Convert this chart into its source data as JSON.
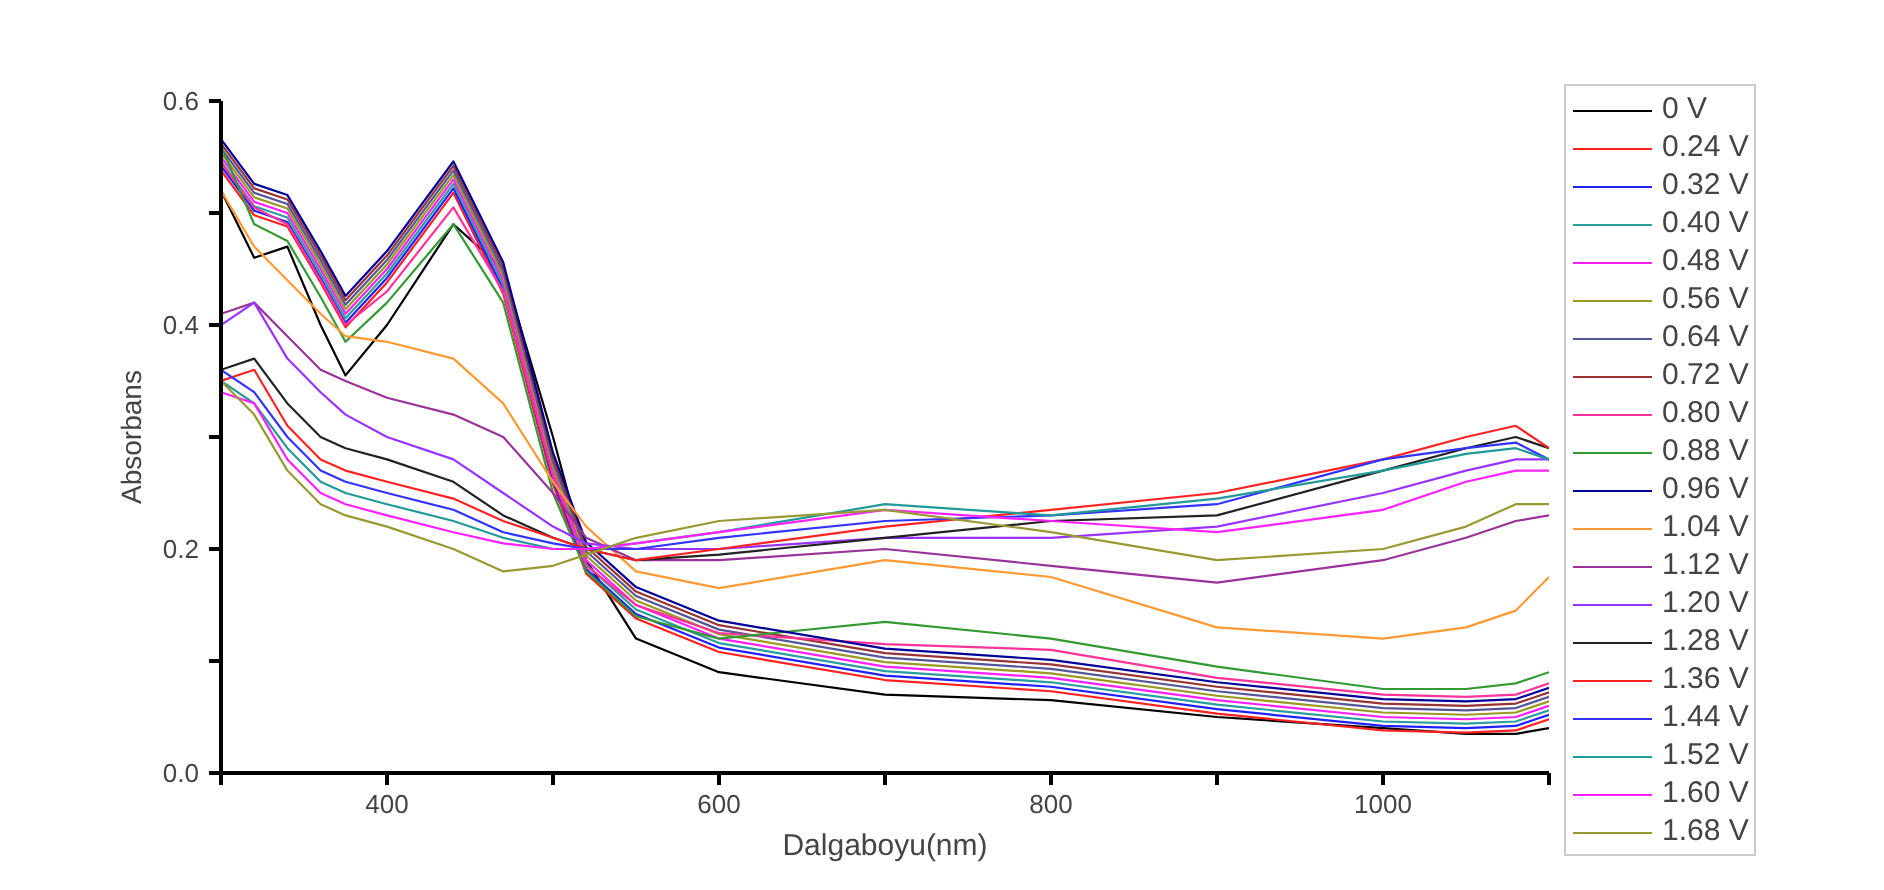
{
  "chart_data": {
    "type": "line",
    "xlabel": "Dalgaboyu(nm)",
    "ylabel": "Absorbans",
    "x": [
      300,
      320,
      340,
      360,
      375,
      400,
      440,
      470,
      500,
      520,
      550,
      600,
      700,
      800,
      900,
      1000,
      1050,
      1080,
      1100
    ],
    "xlim": [
      300,
      1100
    ],
    "ylim": [
      0,
      0.6
    ],
    "xticks": [
      {
        "value": 300,
        "label": null
      },
      400,
      {
        "value": 500,
        "label": null
      },
      600,
      {
        "value": 700,
        "label": null
      },
      800,
      {
        "value": 900,
        "label": null
      },
      1000,
      {
        "value": 1100,
        "label": null
      }
    ],
    "yticks": [
      {
        "value": 0,
        "label": "0.0"
      },
      {
        "value": 0.1,
        "label": null
      },
      0.2,
      {
        "value": 0.3,
        "label": null
      },
      0.4,
      {
        "value": 0.5,
        "label": null
      },
      0.6
    ],
    "grid": false,
    "legend": "right",
    "marker": "none",
    "line_style": "solid",
    "series": [
      {
        "name": "0 V",
        "color": "#000000",
        "values": [
          0.52,
          0.46,
          0.47,
          0.4,
          0.355,
          0.4,
          0.49,
          0.45,
          0.3,
          0.19,
          0.12,
          0.09,
          0.07,
          0.065,
          0.05,
          0.04,
          0.035,
          0.035,
          0.04
        ]
      },
      {
        "name": "0.24 V",
        "color": "#ff2020",
        "values": [
          0.538,
          0.498,
          0.488,
          0.438,
          0.398,
          0.438,
          0.518,
          0.428,
          0.258,
          0.178,
          0.138,
          0.108,
          0.083,
          0.073,
          0.053,
          0.038,
          0.036,
          0.038,
          0.048
        ]
      },
      {
        "name": "0.32 V",
        "color": "#2020ff",
        "values": [
          0.542,
          0.502,
          0.492,
          0.442,
          0.402,
          0.442,
          0.522,
          0.432,
          0.262,
          0.182,
          0.142,
          0.112,
          0.087,
          0.077,
          0.057,
          0.042,
          0.04,
          0.042,
          0.052
        ]
      },
      {
        "name": "0.40 V",
        "color": "#2a9d9d",
        "values": [
          0.546,
          0.506,
          0.496,
          0.446,
          0.406,
          0.446,
          0.526,
          0.436,
          0.266,
          0.186,
          0.146,
          0.116,
          0.091,
          0.081,
          0.061,
          0.046,
          0.044,
          0.046,
          0.056
        ]
      },
      {
        "name": "0.48 V",
        "color": "#ff20ff",
        "values": [
          0.55,
          0.51,
          0.5,
          0.45,
          0.41,
          0.45,
          0.53,
          0.44,
          0.27,
          0.19,
          0.15,
          0.12,
          0.095,
          0.085,
          0.065,
          0.05,
          0.048,
          0.05,
          0.06
        ]
      },
      {
        "name": "0.56 V",
        "color": "#999922",
        "values": [
          0.554,
          0.514,
          0.504,
          0.454,
          0.414,
          0.454,
          0.534,
          0.444,
          0.274,
          0.194,
          0.154,
          0.124,
          0.099,
          0.089,
          0.069,
          0.054,
          0.052,
          0.054,
          0.064
        ]
      },
      {
        "name": "0.64 V",
        "color": "#555599",
        "values": [
          0.558,
          0.518,
          0.508,
          0.458,
          0.418,
          0.458,
          0.538,
          0.448,
          0.278,
          0.198,
          0.158,
          0.128,
          0.103,
          0.093,
          0.073,
          0.058,
          0.056,
          0.058,
          0.068
        ]
      },
      {
        "name": "0.72 V",
        "color": "#993333",
        "values": [
          0.562,
          0.522,
          0.512,
          0.462,
          0.422,
          0.462,
          0.542,
          0.452,
          0.282,
          0.202,
          0.162,
          0.132,
          0.107,
          0.097,
          0.077,
          0.062,
          0.06,
          0.062,
          0.072
        ]
      },
      {
        "name": "0.80 V",
        "color": "#ff3399",
        "values": [
          0.545,
          0.505,
          0.49,
          0.44,
          0.4,
          0.43,
          0.505,
          0.43,
          0.265,
          0.185,
          0.15,
          0.125,
          0.115,
          0.11,
          0.085,
          0.07,
          0.068,
          0.07,
          0.08
        ]
      },
      {
        "name": "0.88 V",
        "color": "#339933",
        "values": [
          0.56,
          0.49,
          0.475,
          0.425,
          0.385,
          0.42,
          0.49,
          0.42,
          0.25,
          0.18,
          0.14,
          0.12,
          0.135,
          0.12,
          0.095,
          0.075,
          0.075,
          0.08,
          0.09
        ]
      },
      {
        "name": "0.96 V",
        "color": "#000099",
        "values": [
          0.566,
          0.526,
          0.516,
          0.466,
          0.426,
          0.466,
          0.546,
          0.456,
          0.286,
          0.206,
          0.166,
          0.136,
          0.111,
          0.101,
          0.081,
          0.066,
          0.064,
          0.066,
          0.076
        ]
      },
      {
        "name": "1.04 V",
        "color": "#ff9933",
        "values": [
          0.52,
          0.47,
          0.44,
          0.41,
          0.39,
          0.385,
          0.37,
          0.33,
          0.26,
          0.22,
          0.18,
          0.165,
          0.19,
          0.175,
          0.13,
          0.12,
          0.13,
          0.145,
          0.175
        ]
      },
      {
        "name": "1.12 V",
        "color": "#993399",
        "values": [
          0.41,
          0.42,
          0.39,
          0.36,
          0.35,
          0.335,
          0.32,
          0.3,
          0.25,
          0.21,
          0.19,
          0.19,
          0.2,
          0.185,
          0.17,
          0.19,
          0.21,
          0.225,
          0.23
        ]
      },
      {
        "name": "1.20 V",
        "color": "#9933ff",
        "values": [
          0.4,
          0.42,
          0.37,
          0.34,
          0.32,
          0.3,
          0.28,
          0.25,
          0.22,
          0.205,
          0.2,
          0.2,
          0.21,
          0.21,
          0.22,
          0.25,
          0.27,
          0.28,
          0.28
        ]
      },
      {
        "name": "1.28 V",
        "color": "#222222",
        "values": [
          0.36,
          0.37,
          0.33,
          0.3,
          0.29,
          0.28,
          0.26,
          0.23,
          0.21,
          0.2,
          0.19,
          0.195,
          0.21,
          0.225,
          0.23,
          0.27,
          0.29,
          0.3,
          0.29
        ]
      },
      {
        "name": "1.36 V",
        "color": "#ff2222",
        "values": [
          0.35,
          0.36,
          0.31,
          0.28,
          0.27,
          0.26,
          0.245,
          0.225,
          0.21,
          0.2,
          0.19,
          0.2,
          0.22,
          0.235,
          0.25,
          0.28,
          0.3,
          0.31,
          0.29
        ]
      },
      {
        "name": "1.44 V",
        "color": "#3333ff",
        "values": [
          0.36,
          0.34,
          0.3,
          0.27,
          0.26,
          0.25,
          0.235,
          0.215,
          0.205,
          0.2,
          0.2,
          0.21,
          0.225,
          0.23,
          0.24,
          0.28,
          0.29,
          0.295,
          0.28
        ]
      },
      {
        "name": "1.52 V",
        "color": "#229999",
        "values": [
          0.35,
          0.33,
          0.29,
          0.26,
          0.25,
          0.24,
          0.225,
          0.21,
          0.2,
          0.2,
          0.205,
          0.215,
          0.24,
          0.23,
          0.245,
          0.27,
          0.285,
          0.29,
          0.28
        ]
      },
      {
        "name": "1.60 V",
        "color": "#ff22ff",
        "values": [
          0.34,
          0.33,
          0.28,
          0.25,
          0.24,
          0.23,
          0.215,
          0.205,
          0.2,
          0.2,
          0.205,
          0.215,
          0.235,
          0.225,
          0.215,
          0.235,
          0.26,
          0.27,
          0.27
        ]
      },
      {
        "name": "1.68 V",
        "color": "#999933",
        "values": [
          0.35,
          0.32,
          0.27,
          0.24,
          0.23,
          0.22,
          0.2,
          0.18,
          0.185,
          0.195,
          0.21,
          0.225,
          0.235,
          0.215,
          0.19,
          0.2,
          0.22,
          0.24,
          0.24
        ]
      }
    ]
  }
}
